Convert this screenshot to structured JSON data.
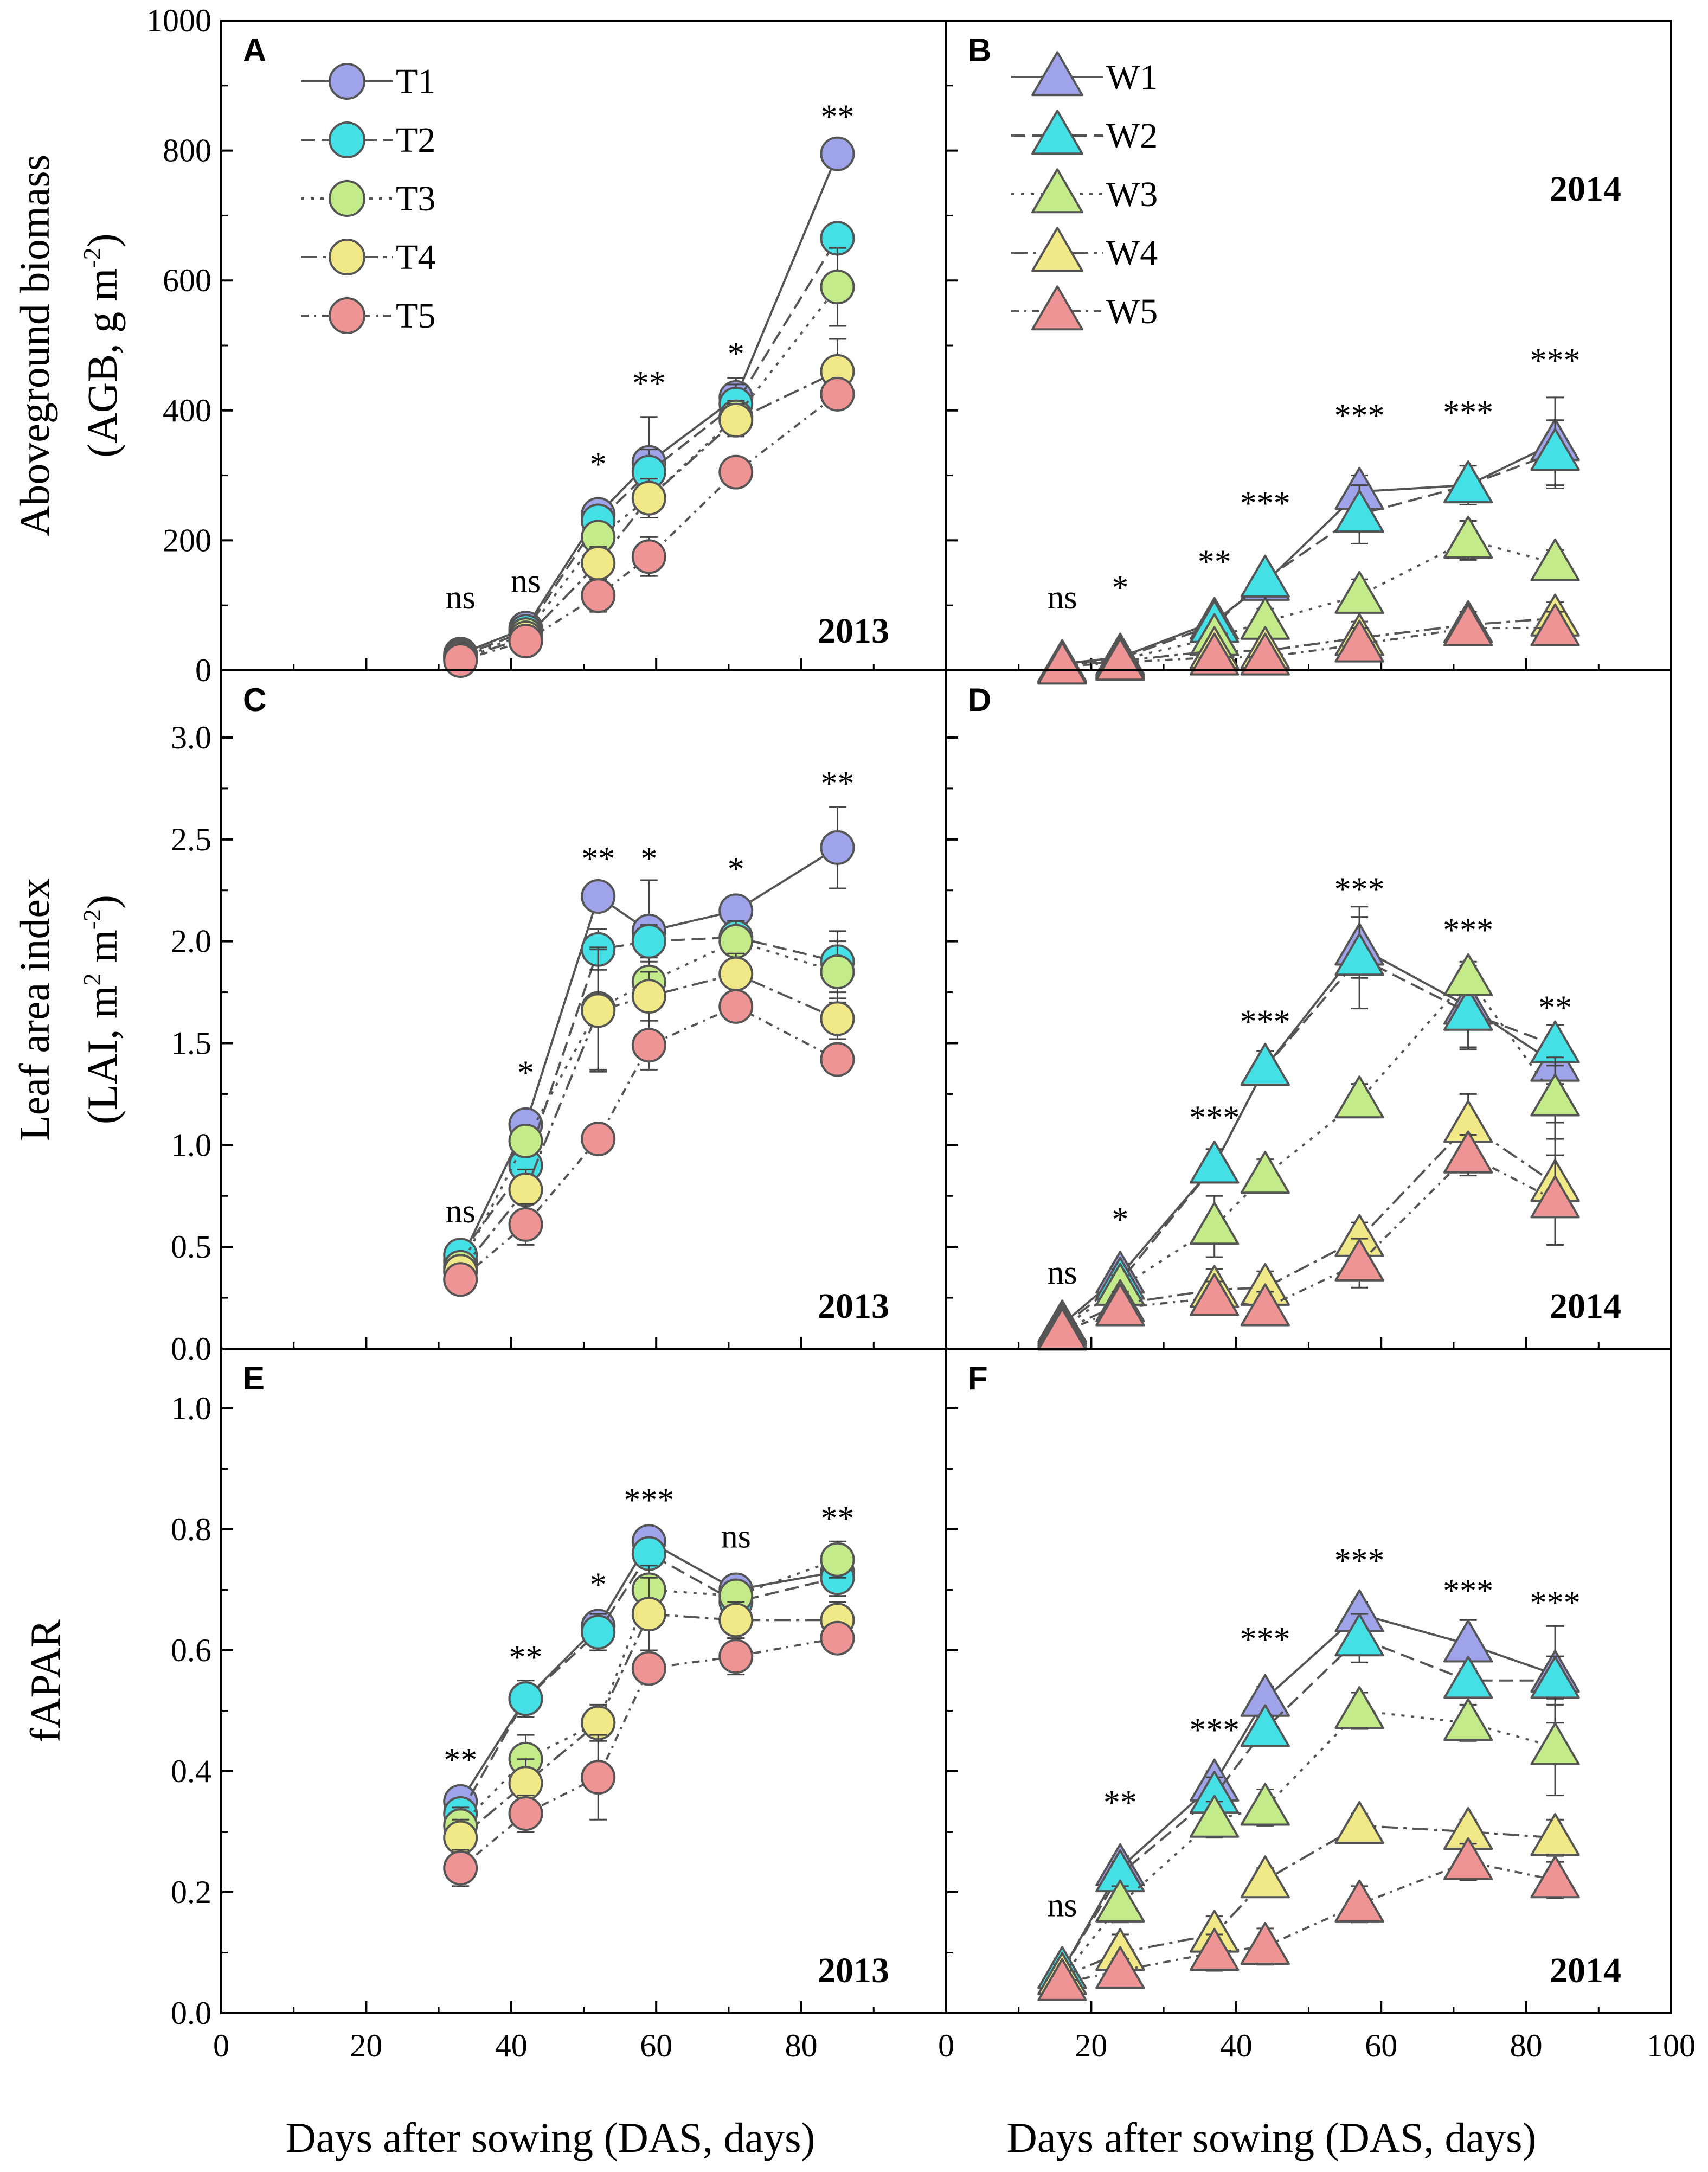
{
  "figure": {
    "xlabel_left": "Days after sowing (DAS, days)",
    "xlabel_right": "Days after sowing (DAS, days)",
    "colors": {
      "c1": "#9ea3ea",
      "c2": "#45e0e6",
      "c3": "#c4eb8a",
      "c4": "#f1e888",
      "c5": "#ef9494",
      "frame": "#000000",
      "line": "#555555"
    }
  },
  "chart_data": [
    {
      "panel": "A",
      "year": "2013",
      "type": "line",
      "marker": "circle",
      "ylabel": [
        "Aboveground biomass",
        "(AGB, g m",
        "-2",
        ")"
      ],
      "xlim": [
        0,
        100
      ],
      "ylim": [
        0,
        1000
      ],
      "yticks": [
        0,
        200,
        400,
        600,
        800,
        1000
      ],
      "xtick_labels": [
        "0",
        "20",
        "40",
        "60",
        "80",
        ""
      ],
      "legend": true,
      "x": [
        33,
        42,
        52,
        59,
        71,
        85
      ],
      "series": [
        {
          "name": "T1",
          "values": [
            25,
            65,
            240,
            320,
            420,
            795
          ],
          "errors": [
            5,
            10,
            15,
            70,
            30,
            15
          ]
        },
        {
          "name": "T2",
          "values": [
            22,
            60,
            230,
            305,
            410,
            665
          ],
          "errors": [
            5,
            10,
            15,
            35,
            30,
            20
          ]
        },
        {
          "name": "T3",
          "values": [
            20,
            55,
            205,
            265,
            390,
            590
          ],
          "errors": [
            5,
            10,
            15,
            30,
            25,
            60
          ]
        },
        {
          "name": "T4",
          "values": [
            18,
            50,
            165,
            265,
            385,
            460
          ],
          "errors": [
            5,
            8,
            25,
            30,
            25,
            50
          ]
        },
        {
          "name": "T5",
          "values": [
            15,
            45,
            115,
            175,
            305,
            425
          ],
          "errors": [
            5,
            10,
            25,
            30,
            20,
            20
          ]
        }
      ],
      "annotations": [
        {
          "x": 33,
          "y": 95,
          "text": "ns"
        },
        {
          "x": 42,
          "y": 120,
          "text": "ns"
        },
        {
          "x": 52,
          "y": 300,
          "text": "*"
        },
        {
          "x": 59,
          "y": 425,
          "text": "**"
        },
        {
          "x": 71,
          "y": 470,
          "text": "*"
        },
        {
          "x": 85,
          "y": 835,
          "text": "**"
        }
      ]
    },
    {
      "panel": "B",
      "year": "2014",
      "type": "line",
      "marker": "triangle",
      "xlim": [
        0,
        100
      ],
      "ylim": [
        0,
        1000
      ],
      "yticks": [
        0,
        200,
        400,
        600,
        800,
        1000
      ],
      "xtick_labels": [
        "0",
        "20",
        "40",
        "60",
        "80",
        "100"
      ],
      "legend": true,
      "x": [
        16,
        24,
        37,
        44,
        57,
        72,
        84
      ],
      "series": [
        {
          "name": "W1",
          "values": [
            10,
            20,
            75,
            135,
            275,
            285,
            350
          ],
          "errors": [
            5,
            8,
            15,
            15,
            25,
            30,
            70
          ]
        },
        {
          "name": "W2",
          "values": [
            9,
            18,
            70,
            140,
            240,
            285,
            335
          ],
          "errors": [
            5,
            8,
            15,
            15,
            45,
            30,
            50
          ]
        },
        {
          "name": "W3",
          "values": [
            8,
            16,
            50,
            75,
            115,
            200,
            165
          ],
          "errors": [
            5,
            8,
            15,
            20,
            25,
            30,
            20
          ]
        },
        {
          "name": "W4",
          "values": [
            7,
            14,
            30,
            30,
            50,
            70,
            80
          ],
          "errors": [
            5,
            8,
            15,
            15,
            25,
            20,
            25
          ]
        },
        {
          "name": "W5",
          "values": [
            6,
            12,
            20,
            20,
            40,
            65,
            65
          ],
          "errors": [
            5,
            8,
            15,
            15,
            25,
            20,
            25
          ]
        }
      ],
      "annotations": [
        {
          "x": 16,
          "y": 95,
          "text": "ns"
        },
        {
          "x": 24,
          "y": 110,
          "text": "*"
        },
        {
          "x": 37,
          "y": 150,
          "text": "**"
        },
        {
          "x": 44,
          "y": 240,
          "text": "***"
        },
        {
          "x": 57,
          "y": 375,
          "text": "***"
        },
        {
          "x": 72,
          "y": 380,
          "text": "***"
        },
        {
          "x": 84,
          "y": 460,
          "text": "***"
        }
      ]
    },
    {
      "panel": "C",
      "year": "2013",
      "type": "line",
      "marker": "circle",
      "ylabel": [
        "Leaf area index",
        "(LAI, m",
        "2",
        " m",
        "-2",
        ")"
      ],
      "xlim": [
        0,
        100
      ],
      "ylim": [
        0,
        3.2
      ],
      "yticks": [
        0.0,
        0.5,
        1.0,
        1.5,
        2.0,
        2.5,
        3.0
      ],
      "xtick_labels": [
        "0",
        "20",
        "40",
        "60",
        "80",
        ""
      ],
      "legend": false,
      "x": [
        33,
        42,
        52,
        59,
        71,
        85
      ],
      "series": [
        {
          "name": "T1",
          "values": [
            0.43,
            1.1,
            2.22,
            2.05,
            2.15,
            2.46
          ],
          "errors": [
            0.05,
            0.05,
            0.05,
            0.25,
            0.05,
            0.2
          ]
        },
        {
          "name": "T2",
          "values": [
            0.46,
            0.9,
            1.96,
            2.0,
            2.02,
            1.9
          ],
          "errors": [
            0.05,
            0.05,
            0.1,
            0.08,
            0.08,
            0.15
          ]
        },
        {
          "name": "T3",
          "values": [
            0.4,
            1.02,
            1.67,
            1.8,
            2.0,
            1.85
          ],
          "errors": [
            0.05,
            0.05,
            0.3,
            0.1,
            0.1,
            0.15
          ]
        },
        {
          "name": "T4",
          "values": [
            0.38,
            0.78,
            1.66,
            1.73,
            1.84,
            1.62
          ],
          "errors": [
            0.05,
            0.1,
            0.3,
            0.12,
            0.1,
            0.1
          ]
        },
        {
          "name": "T5",
          "values": [
            0.34,
            0.61,
            1.03,
            1.49,
            1.68,
            1.42
          ],
          "errors": [
            0.05,
            0.1,
            0.05,
            0.12,
            0.06,
            0.06
          ]
        }
      ],
      "annotations": [
        {
          "x": 33,
          "y": 0.62,
          "text": "ns"
        },
        {
          "x": 42,
          "y": 1.3,
          "text": "*"
        },
        {
          "x": 52,
          "y": 2.35,
          "text": "**"
        },
        {
          "x": 59,
          "y": 2.35,
          "text": "*"
        },
        {
          "x": 71,
          "y": 2.3,
          "text": "*"
        },
        {
          "x": 85,
          "y": 2.72,
          "text": "**"
        }
      ]
    },
    {
      "panel": "D",
      "year": "2014",
      "type": "line",
      "marker": "triangle",
      "xlim": [
        0,
        100
      ],
      "ylim": [
        0,
        3.2
      ],
      "yticks": [
        0.0,
        0.5,
        1.0,
        1.5,
        2.0,
        2.5,
        3.0
      ],
      "xtick_labels": [
        "0",
        "20",
        "40",
        "60",
        "80",
        "100"
      ],
      "legend": false,
      "x": [
        16,
        24,
        37,
        44,
        57,
        72,
        84
      ],
      "series": [
        {
          "name": "W1",
          "values": [
            0.12,
            0.36,
            0.9,
            1.38,
            1.97,
            1.68,
            1.4
          ],
          "errors": [
            0.04,
            0.06,
            0.08,
            0.08,
            0.15,
            0.2,
            0.1
          ]
        },
        {
          "name": "W2",
          "values": [
            0.11,
            0.33,
            0.9,
            1.38,
            1.92,
            1.65,
            1.49
          ],
          "errors": [
            0.04,
            0.06,
            0.08,
            0.08,
            0.25,
            0.18,
            0.1
          ]
        },
        {
          "name": "W3",
          "values": [
            0.1,
            0.3,
            0.6,
            0.85,
            1.22,
            1.82,
            1.23
          ],
          "errors": [
            0.04,
            0.06,
            0.15,
            0.08,
            0.08,
            0.08,
            0.2
          ]
        },
        {
          "name": "W4",
          "values": [
            0.09,
            0.22,
            0.29,
            0.3,
            0.54,
            1.1,
            0.81
          ],
          "errors": [
            0.04,
            0.06,
            0.1,
            0.08,
            0.08,
            0.15,
            0.3
          ]
        },
        {
          "name": "W5",
          "values": [
            0.08,
            0.2,
            0.25,
            0.2,
            0.42,
            0.95,
            0.73
          ],
          "errors": [
            0.04,
            0.06,
            0.08,
            0.08,
            0.12,
            0.1,
            0.22
          ]
        }
      ],
      "annotations": [
        {
          "x": 16,
          "y": 0.32,
          "text": "ns"
        },
        {
          "x": 24,
          "y": 0.58,
          "text": "*"
        },
        {
          "x": 37,
          "y": 1.08,
          "text": "***"
        },
        {
          "x": 44,
          "y": 1.55,
          "text": "***"
        },
        {
          "x": 57,
          "y": 2.2,
          "text": "***"
        },
        {
          "x": 72,
          "y": 2.0,
          "text": "***"
        },
        {
          "x": 84,
          "y": 1.62,
          "text": "**"
        }
      ]
    },
    {
      "panel": "E",
      "year": "2013",
      "type": "line",
      "marker": "circle",
      "ylabel": [
        "fAPAR"
      ],
      "xlim": [
        0,
        100
      ],
      "ylim": [
        0,
        1.1
      ],
      "yticks": [
        0.0,
        0.2,
        0.4,
        0.6,
        0.8,
        1.0
      ],
      "xtick_labels": [
        "0",
        "20",
        "40",
        "60",
        "80",
        ""
      ],
      "legend": false,
      "x": [
        33,
        42,
        52,
        59,
        71,
        85
      ],
      "series": [
        {
          "name": "T1",
          "values": [
            0.35,
            0.52,
            0.64,
            0.78,
            0.7,
            0.73
          ],
          "errors": [
            0.02,
            0.02,
            0.02,
            0.02,
            0.02,
            0.03
          ]
        },
        {
          "name": "T2",
          "values": [
            0.33,
            0.52,
            0.63,
            0.76,
            0.68,
            0.72
          ],
          "errors": [
            0.02,
            0.03,
            0.03,
            0.02,
            0.02,
            0.03
          ]
        },
        {
          "name": "T3",
          "values": [
            0.31,
            0.42,
            0.48,
            0.7,
            0.69,
            0.75
          ],
          "errors": [
            0.03,
            0.04,
            0.02,
            0.04,
            0.02,
            0.03
          ]
        },
        {
          "name": "T4",
          "values": [
            0.29,
            0.38,
            0.48,
            0.66,
            0.65,
            0.65
          ],
          "errors": [
            0.03,
            0.04,
            0.03,
            0.06,
            0.03,
            0.03
          ]
        },
        {
          "name": "T5",
          "values": [
            0.24,
            0.33,
            0.39,
            0.57,
            0.59,
            0.62
          ],
          "errors": [
            0.03,
            0.03,
            0.07,
            0.02,
            0.03,
            0.02
          ]
        }
      ],
      "annotations": [
        {
          "x": 33,
          "y": 0.4,
          "text": "**"
        },
        {
          "x": 42,
          "y": 0.57,
          "text": "**"
        },
        {
          "x": 52,
          "y": 0.69,
          "text": "*"
        },
        {
          "x": 59,
          "y": 0.83,
          "text": "***"
        },
        {
          "x": 71,
          "y": 0.77,
          "text": "ns"
        },
        {
          "x": 85,
          "y": 0.8,
          "text": "**"
        }
      ]
    },
    {
      "panel": "F",
      "year": "2014",
      "type": "line",
      "marker": "triangle",
      "xlim": [
        0,
        100
      ],
      "ylim": [
        0,
        1.1
      ],
      "yticks": [
        0.0,
        0.2,
        0.4,
        0.6,
        0.8,
        1.0
      ],
      "xtick_labels": [
        "0",
        "20",
        "40",
        "60",
        "80",
        "100"
      ],
      "legend": false,
      "x": [
        16,
        24,
        37,
        44,
        57,
        72,
        84
      ],
      "series": [
        {
          "name": "W1",
          "values": [
            0.07,
            0.24,
            0.38,
            0.52,
            0.66,
            0.61,
            0.56
          ],
          "errors": [
            0.02,
            0.02,
            0.02,
            0.02,
            0.02,
            0.04,
            0.08
          ]
        },
        {
          "name": "W2",
          "values": [
            0.07,
            0.23,
            0.36,
            0.47,
            0.62,
            0.55,
            0.55
          ],
          "errors": [
            0.02,
            0.02,
            0.03,
            0.02,
            0.04,
            0.02,
            0.04
          ]
        },
        {
          "name": "W3",
          "values": [
            0.06,
            0.18,
            0.32,
            0.34,
            0.5,
            0.48,
            0.44
          ],
          "errors": [
            0.02,
            0.03,
            0.03,
            0.03,
            0.03,
            0.03,
            0.08
          ]
        },
        {
          "name": "W4",
          "values": [
            0.06,
            0.1,
            0.13,
            0.22,
            0.31,
            0.3,
            0.29
          ],
          "errors": [
            0.02,
            0.03,
            0.03,
            0.02,
            0.02,
            0.02,
            0.03
          ]
        },
        {
          "name": "W5",
          "values": [
            0.05,
            0.07,
            0.1,
            0.11,
            0.18,
            0.25,
            0.22
          ],
          "errors": [
            0.02,
            0.02,
            0.03,
            0.03,
            0.03,
            0.03,
            0.03
          ]
        }
      ],
      "annotations": [
        {
          "x": 16,
          "y": 0.16,
          "text": "ns"
        },
        {
          "x": 24,
          "y": 0.33,
          "text": "**"
        },
        {
          "x": 37,
          "y": 0.45,
          "text": "***"
        },
        {
          "x": 44,
          "y": 0.6,
          "text": "***"
        },
        {
          "x": 57,
          "y": 0.73,
          "text": "***"
        },
        {
          "x": 72,
          "y": 0.68,
          "text": "***"
        },
        {
          "x": 84,
          "y": 0.66,
          "text": "***"
        }
      ]
    }
  ]
}
